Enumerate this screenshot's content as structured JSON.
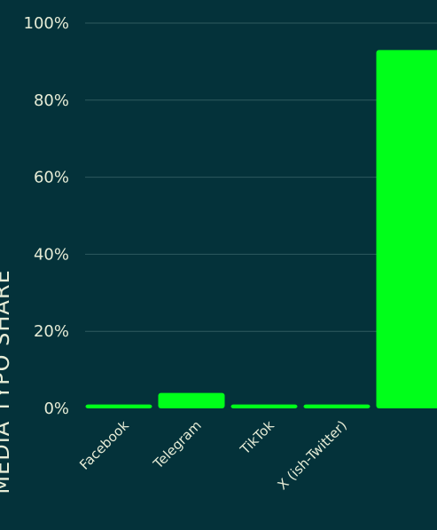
{
  "chart_data": {
    "type": "bar",
    "title": "",
    "ylabel": "MEDIA TYPO SHARE",
    "xlabel": "",
    "categories": [
      "Facebook",
      "Telegram",
      "TikTok",
      "X (ish-Twitter)",
      ""
    ],
    "values": [
      1,
      4,
      1,
      1,
      93
    ],
    "ylim": [
      0,
      100
    ],
    "yticks": [
      0,
      20,
      40,
      60,
      80,
      100
    ],
    "ytick_suffix": "%",
    "grid": true,
    "bar_color": "#00ff1a",
    "background": "#04323a",
    "text_color": "#e6ecd6"
  }
}
